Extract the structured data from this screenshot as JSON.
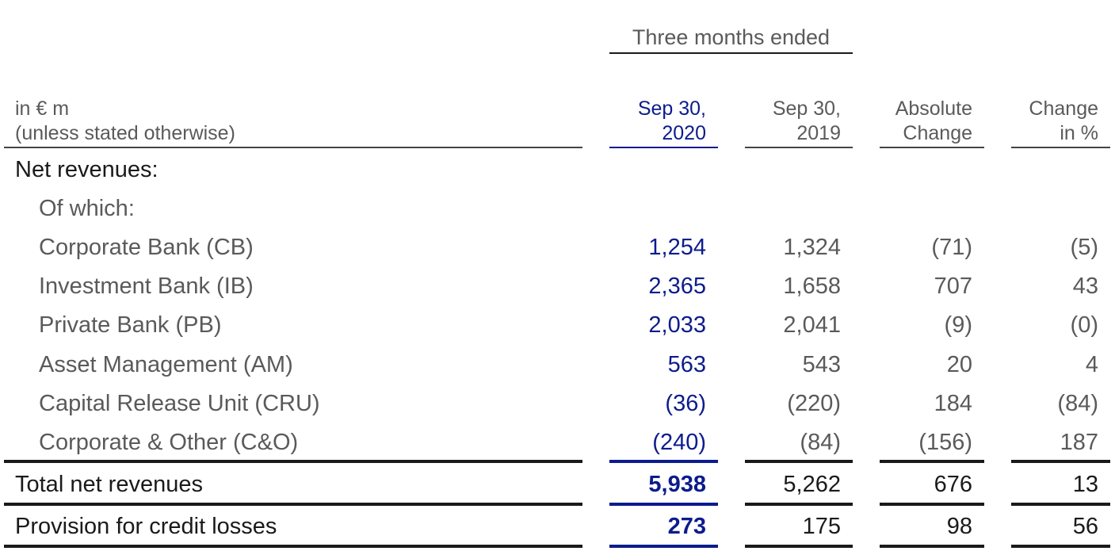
{
  "header": {
    "group_title": "Three months ended",
    "unit_label": "in € m",
    "unit_note": "(unless stated otherwise)",
    "columns": [
      {
        "line1": "Sep 30,",
        "line2": "2020"
      },
      {
        "line1": "Sep 30,",
        "line2": "2019"
      },
      {
        "line1": "Absolute",
        "line2": "Change"
      },
      {
        "line1": "Change",
        "line2": "in %"
      }
    ]
  },
  "section": {
    "title": "Net revenues:",
    "subtitle": "Of which:"
  },
  "rows": [
    {
      "label": "Corporate Bank (CB)",
      "values": [
        "1,254",
        "1,324",
        "(71)",
        "(5)"
      ]
    },
    {
      "label": "Investment Bank (IB)",
      "values": [
        "2,365",
        "1,658",
        "707",
        "43"
      ]
    },
    {
      "label": "Private Bank (PB)",
      "values": [
        "2,033",
        "2,041",
        "(9)",
        "(0)"
      ]
    },
    {
      "label": "Asset Management (AM)",
      "values": [
        "563",
        "543",
        "20",
        "4"
      ]
    },
    {
      "label": "Capital Release Unit (CRU)",
      "values": [
        "(36)",
        "(220)",
        "184",
        "(84)"
      ]
    },
    {
      "label": "Corporate & Other (C&O)",
      "values": [
        "(240)",
        "(84)",
        "(156)",
        "187"
      ]
    }
  ],
  "totals": [
    {
      "label": "Total net revenues",
      "values": [
        "5,938",
        "5,262",
        "676",
        "13"
      ]
    },
    {
      "label": "Provision for credit losses",
      "values": [
        "273",
        "175",
        "98",
        "56"
      ]
    }
  ]
}
